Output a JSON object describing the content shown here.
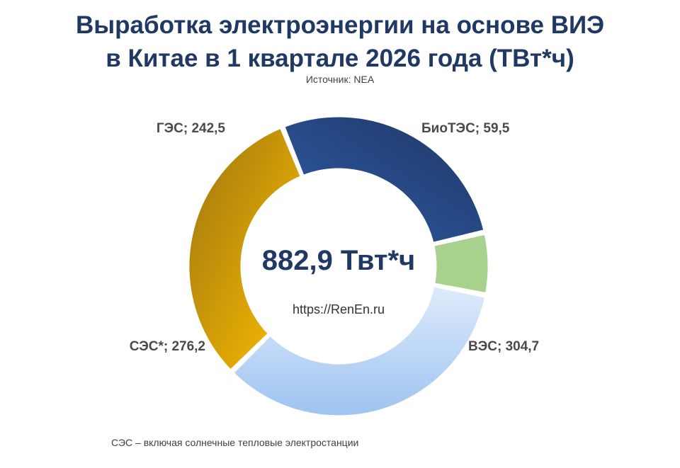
{
  "header": {
    "title_line1": "Выработка электроэнергии на основе ВИЭ",
    "title_line2": "в Китае в 1 квартале 2026 года (ТВт*ч)",
    "source": "Источник: NEA"
  },
  "center": {
    "total": "882,9 Твт*ч",
    "site": "https://RenEn.ru"
  },
  "footnote": "СЭС – включая солнечные тепловые электростанции",
  "chart_data": {
    "type": "pie",
    "variant": "donut",
    "title": "Выработка электроэнергии на основе ВИЭ в Китае в 1 квартале 2026 года (ТВт*ч)",
    "unit": "ТВт*ч",
    "total": 882.9,
    "slices": [
      {
        "label": "ГЭС; 242,5",
        "category": "ГЭС",
        "value": 242.5,
        "color": "#1f3864",
        "color_light": "#2f5aa8"
      },
      {
        "label": "БиоТЭС; 59,5",
        "category": "БиоТЭС",
        "value": 59.5,
        "color": "#a9d18e",
        "color_light": "#a9d18e"
      },
      {
        "label": "ВЭС; 304,7",
        "category": "ВЭС",
        "value": 304.7,
        "color": "#9dc3f0",
        "color_light": "#deebfb"
      },
      {
        "label": "СЭС*; 276,2",
        "category": "СЭС*",
        "value": 276.2,
        "color": "#ffc000",
        "color_light": "#9c7410"
      }
    ]
  }
}
